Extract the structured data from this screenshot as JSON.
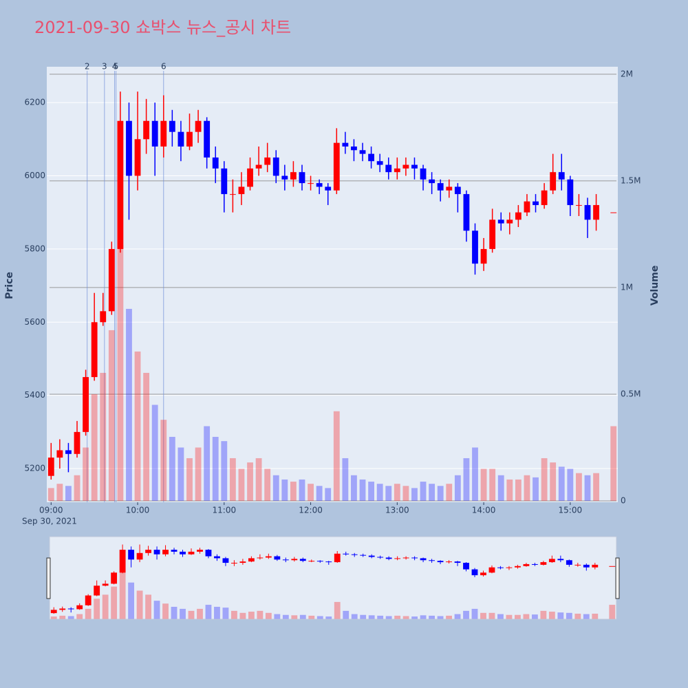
{
  "chart_data": {
    "type": "candlestick",
    "title": "2021-09-30 쇼박스 뉴스_공시 차트",
    "x": [
      "09:00",
      "09:06",
      "09:12",
      "09:18",
      "09:24",
      "09:30",
      "09:36",
      "09:42",
      "09:48",
      "09:54",
      "10:00",
      "10:06",
      "10:12",
      "10:18",
      "10:24",
      "10:30",
      "10:36",
      "10:42",
      "10:48",
      "10:54",
      "11:00",
      "11:06",
      "11:12",
      "11:18",
      "11:24",
      "11:30",
      "11:36",
      "11:42",
      "11:48",
      "11:54",
      "12:00",
      "12:06",
      "12:12",
      "12:18",
      "12:24",
      "12:30",
      "12:36",
      "12:42",
      "12:48",
      "12:54",
      "13:00",
      "13:06",
      "13:12",
      "13:18",
      "13:24",
      "13:30",
      "13:36",
      "13:42",
      "13:48",
      "13:54",
      "14:00",
      "14:06",
      "14:12",
      "14:18",
      "14:24",
      "14:30",
      "14:36",
      "14:42",
      "14:48",
      "14:54",
      "15:00",
      "15:06",
      "15:12",
      "15:18",
      "15:30"
    ],
    "open": [
      5180,
      5230,
      5250,
      5240,
      5300,
      5450,
      5600,
      5630,
      5800,
      6150,
      6000,
      6100,
      6150,
      6080,
      6150,
      6120,
      6080,
      6120,
      6150,
      6050,
      6020,
      5950,
      5950,
      5970,
      6020,
      6030,
      6050,
      6000,
      5990,
      6010,
      5980,
      5980,
      5970,
      5960,
      6090,
      6080,
      6070,
      6060,
      6040,
      6030,
      6010,
      6020,
      6030,
      6020,
      5990,
      5980,
      5960,
      5970,
      5950,
      5850,
      5760,
      5800,
      5880,
      5870,
      5880,
      5900,
      5930,
      5920,
      5960,
      6010,
      5990,
      5920,
      5920,
      5880,
      5900
    ],
    "high": [
      5270,
      5280,
      5270,
      5330,
      5470,
      5680,
      5680,
      5820,
      6230,
      6200,
      6230,
      6210,
      6200,
      6220,
      6180,
      6150,
      6170,
      6180,
      6160,
      6080,
      6040,
      5990,
      6010,
      6050,
      6080,
      6090,
      6070,
      6030,
      6040,
      6030,
      6000,
      5990,
      5980,
      6130,
      6120,
      6100,
      6090,
      6080,
      6060,
      6050,
      6050,
      6050,
      6050,
      6030,
      6010,
      5990,
      5990,
      5980,
      5960,
      5870,
      5830,
      5910,
      5900,
      5900,
      5920,
      5950,
      5950,
      5980,
      6060,
      6060,
      6000,
      5950,
      5940,
      5950,
      5900
    ],
    "low": [
      5170,
      5200,
      5190,
      5230,
      5290,
      5440,
      5590,
      5620,
      5790,
      5880,
      5960,
      6060,
      6000,
      6050,
      6080,
      6040,
      6070,
      6090,
      6020,
      5980,
      5900,
      5900,
      5920,
      5960,
      6000,
      6010,
      5980,
      5960,
      5970,
      5960,
      5960,
      5950,
      5920,
      5950,
      6060,
      6040,
      6040,
      6020,
      6010,
      5990,
      5990,
      6000,
      5990,
      5960,
      5950,
      5930,
      5940,
      5900,
      5820,
      5730,
      5740,
      5790,
      5850,
      5840,
      5860,
      5890,
      5900,
      5910,
      5950,
      5960,
      5890,
      5890,
      5830,
      5850,
      5900
    ],
    "close": [
      5230,
      5250,
      5240,
      5300,
      5450,
      5600,
      5630,
      5800,
      6150,
      6000,
      6100,
      6150,
      6080,
      6150,
      6120,
      6080,
      6120,
      6150,
      6050,
      6020,
      5950,
      5950,
      5970,
      6020,
      6030,
      6050,
      6000,
      5990,
      6010,
      5980,
      5980,
      5970,
      5960,
      6090,
      6080,
      6070,
      6060,
      6040,
      6030,
      6010,
      6020,
      6030,
      6020,
      5990,
      5980,
      5960,
      5970,
      5950,
      5850,
      5760,
      5800,
      5880,
      5870,
      5880,
      5900,
      5930,
      5920,
      5960,
      6010,
      5990,
      5920,
      5920,
      5880,
      5920,
      5900
    ],
    "volume": [
      60000,
      80000,
      70000,
      120000,
      250000,
      500000,
      600000,
      800000,
      1200000,
      900000,
      700000,
      600000,
      450000,
      380000,
      300000,
      250000,
      200000,
      250000,
      350000,
      300000,
      280000,
      200000,
      150000,
      180000,
      200000,
      150000,
      120000,
      100000,
      90000,
      100000,
      80000,
      70000,
      60000,
      420000,
      200000,
      120000,
      100000,
      90000,
      80000,
      70000,
      80000,
      70000,
      60000,
      90000,
      80000,
      70000,
      80000,
      120000,
      200000,
      250000,
      150000,
      150000,
      120000,
      100000,
      100000,
      120000,
      110000,
      200000,
      180000,
      160000,
      150000,
      130000,
      120000,
      130000,
      350000
    ],
    "increasing_color": "#ff0000",
    "decreasing_color": "#0000ff",
    "xlim": [
      "08:57",
      "15:33"
    ],
    "xticks": [
      "09:00",
      "10:00",
      "11:00",
      "12:00",
      "13:00",
      "14:00",
      "15:00"
    ],
    "date_label": "Sep 30, 2021",
    "ylim": [
      5108,
      6298
    ],
    "yticks": [
      5200,
      5400,
      5600,
      5800,
      6000,
      6200
    ],
    "y2lim": [
      -6500,
      2035000
    ],
    "y2ticks": [
      0,
      {
        "value": 500000,
        "label": "0.5M"
      },
      {
        "value": 1000000,
        "label": "1M"
      },
      {
        "value": 1500000,
        "label": "1.5M"
      },
      {
        "value": 2000000,
        "label": "2M"
      }
    ],
    "ylabel": "Price",
    "y2label": "Volume",
    "news_markers": [
      {
        "label": "2",
        "x": "09:25"
      },
      {
        "label": "3",
        "x": "09:37"
      },
      {
        "label": "4",
        "x": "09:44"
      },
      {
        "label": "5",
        "x": "09:45"
      },
      {
        "label": "6",
        "x": "10:18"
      }
    ],
    "rangeslider": true
  }
}
